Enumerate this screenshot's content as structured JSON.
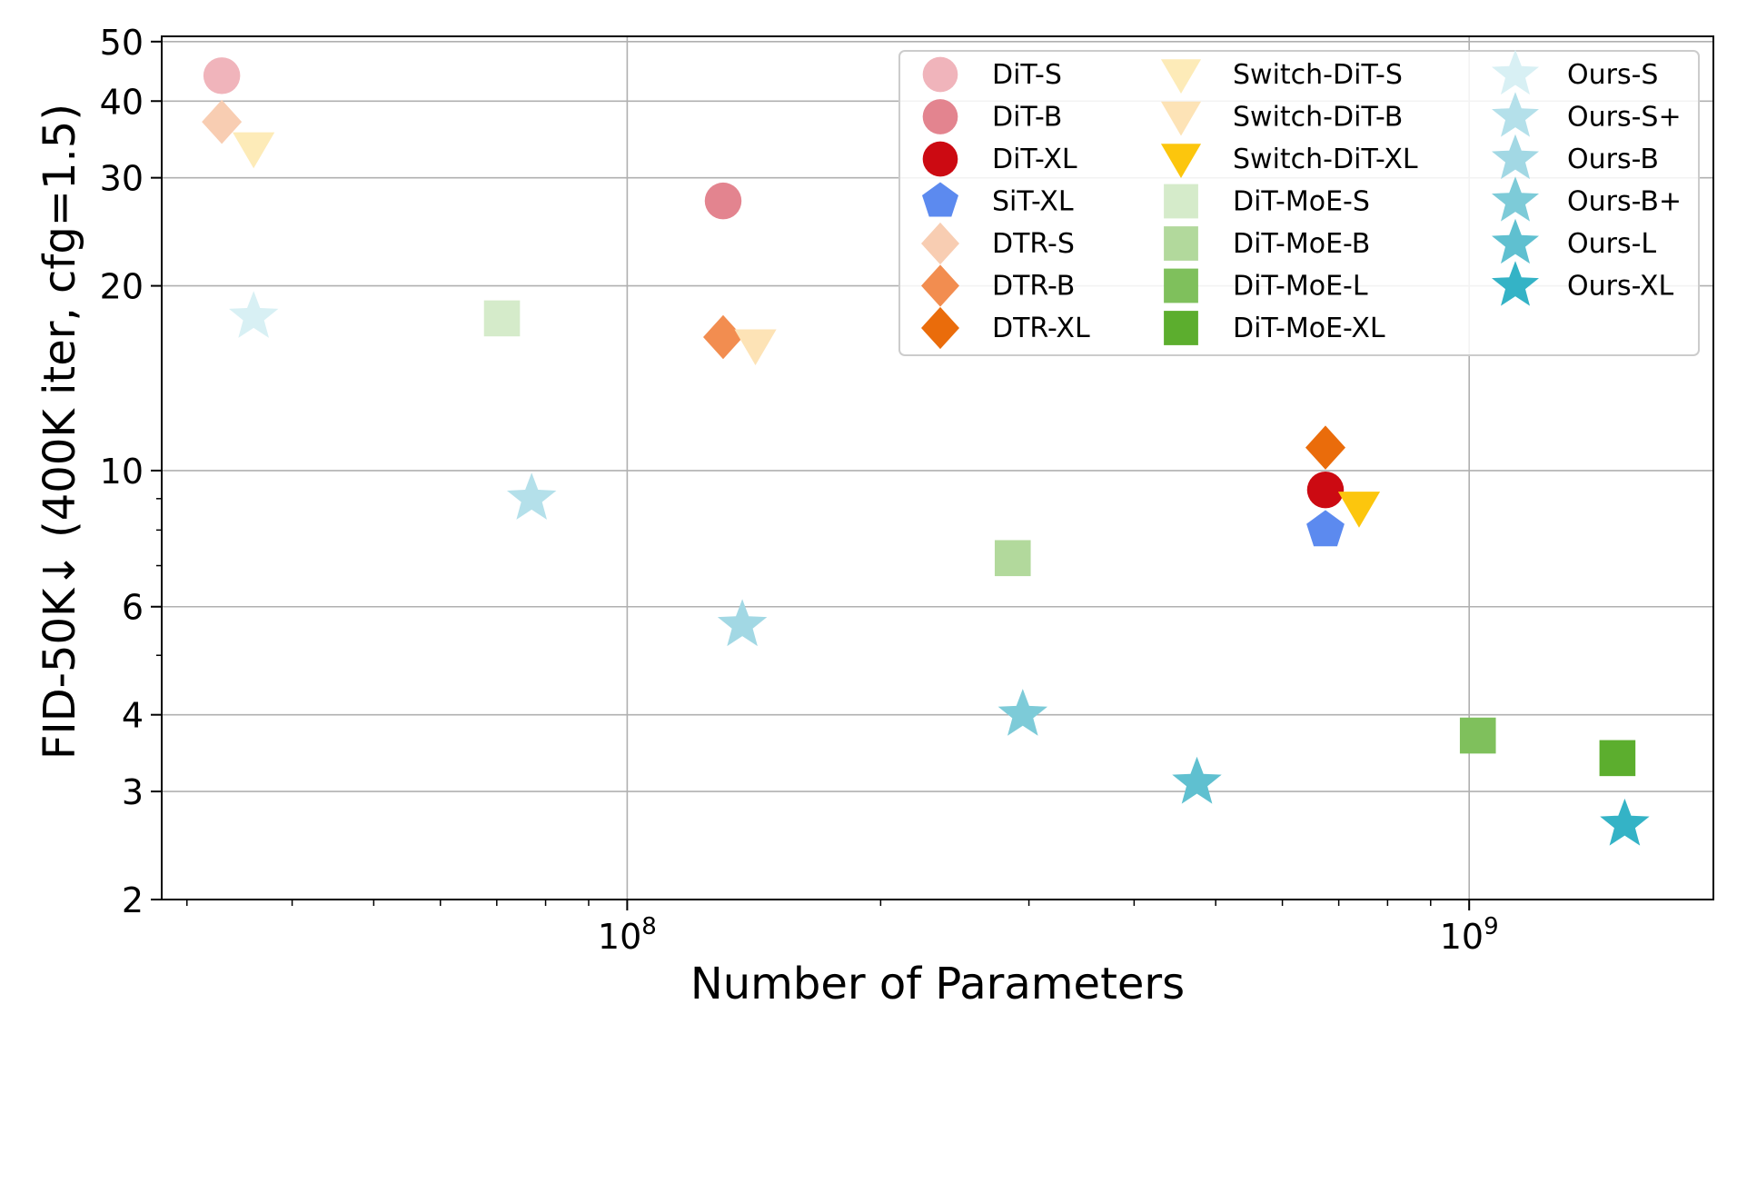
{
  "chart_data": {
    "type": "scatter",
    "title": "",
    "xlabel": "Number of Parameters",
    "ylabel": "FID-50K↓ (400K iter, cfg=1.5)",
    "x_scale": "log",
    "y_scale": "log",
    "xlim": [
      28000000,
      1950000000
    ],
    "ylim": [
      2,
      51
    ],
    "grid": true,
    "legend_position": "top-right",
    "legend_columns": 3,
    "x_ticks": [
      {
        "value": 100000000,
        "base": "10",
        "exp": "8"
      },
      {
        "value": 1000000000,
        "base": "10",
        "exp": "9"
      }
    ],
    "y_ticks": [
      {
        "value": 2,
        "label": "2"
      },
      {
        "value": 3,
        "label": "3"
      },
      {
        "value": 4,
        "label": "4"
      },
      {
        "value": 6,
        "label": "6"
      },
      {
        "value": 10,
        "label": "10"
      },
      {
        "value": 20,
        "label": "20"
      },
      {
        "value": 30,
        "label": "30"
      },
      {
        "value": 40,
        "label": "40"
      },
      {
        "value": 50,
        "label": "50"
      }
    ],
    "series": [
      {
        "name": "DiT-S",
        "marker": "circle",
        "color": "#f0b4bb",
        "points": [
          {
            "x": 33000000,
            "y": 44.0
          }
        ]
      },
      {
        "name": "DiT-B",
        "marker": "circle",
        "color": "#e3848f",
        "points": [
          {
            "x": 130000000,
            "y": 27.5
          }
        ]
      },
      {
        "name": "DiT-XL",
        "marker": "circle",
        "color": "#cc0a12",
        "points": [
          {
            "x": 675000000,
            "y": 9.3
          }
        ]
      },
      {
        "name": "SiT-XL",
        "marker": "pentagon",
        "color": "#5c8aef",
        "points": [
          {
            "x": 675000000,
            "y": 8.0
          }
        ]
      },
      {
        "name": "DTR-S",
        "marker": "diamond",
        "color": "#f8cdb2",
        "points": [
          {
            "x": 33000000,
            "y": 37.0
          }
        ]
      },
      {
        "name": "DTR-B",
        "marker": "diamond",
        "color": "#f28d50",
        "points": [
          {
            "x": 130000000,
            "y": 16.5
          }
        ]
      },
      {
        "name": "DTR-XL",
        "marker": "diamond",
        "color": "#ea6c0b",
        "points": [
          {
            "x": 675000000,
            "y": 10.9
          }
        ]
      },
      {
        "name": "Switch-DiT-S",
        "marker": "triangle-down",
        "color": "#fdebb8",
        "points": [
          {
            "x": 36000000,
            "y": 33.5
          }
        ]
      },
      {
        "name": "Switch-DiT-B",
        "marker": "triangle-down",
        "color": "#fde3b6",
        "points": [
          {
            "x": 142000000,
            "y": 16.0
          }
        ]
      },
      {
        "name": "Switch-DiT-XL",
        "marker": "triangle-down",
        "color": "#fcc60d",
        "points": [
          {
            "x": 740000000,
            "y": 8.7
          }
        ]
      },
      {
        "name": "DiT-MoE-S",
        "marker": "square",
        "color": "#d5ebca",
        "points": [
          {
            "x": 71000000,
            "y": 17.7
          }
        ]
      },
      {
        "name": "DiT-MoE-B",
        "marker": "square",
        "color": "#b2d99c",
        "points": [
          {
            "x": 287000000,
            "y": 7.2
          }
        ]
      },
      {
        "name": "DiT-MoE-L",
        "marker": "square",
        "color": "#7fc05c",
        "points": [
          {
            "x": 1024000000,
            "y": 3.7
          }
        ]
      },
      {
        "name": "DiT-MoE-XL",
        "marker": "square",
        "color": "#5cae2e",
        "points": [
          {
            "x": 1500000000,
            "y": 3.4
          }
        ]
      },
      {
        "name": "Ours-S",
        "marker": "star",
        "color": "#d8f0f4",
        "points": [
          {
            "x": 36000000,
            "y": 17.8
          }
        ]
      },
      {
        "name": "Ours-S+",
        "marker": "star",
        "color": "#b4e0ea",
        "points": [
          {
            "x": 77000000,
            "y": 9.0
          }
        ]
      },
      {
        "name": "Ours-B",
        "marker": "star",
        "color": "#a2d8e4",
        "points": [
          {
            "x": 137000000,
            "y": 5.6
          }
        ]
      },
      {
        "name": "Ours-B+",
        "marker": "star",
        "color": "#7dcbd8",
        "points": [
          {
            "x": 295000000,
            "y": 4.0
          }
        ]
      },
      {
        "name": "Ours-L",
        "marker": "star",
        "color": "#5fc0d0",
        "points": [
          {
            "x": 475000000,
            "y": 3.1
          }
        ]
      },
      {
        "name": "Ours-XL",
        "marker": "star",
        "color": "#34b3c6",
        "points": [
          {
            "x": 1530000000,
            "y": 2.65
          }
        ]
      }
    ]
  }
}
